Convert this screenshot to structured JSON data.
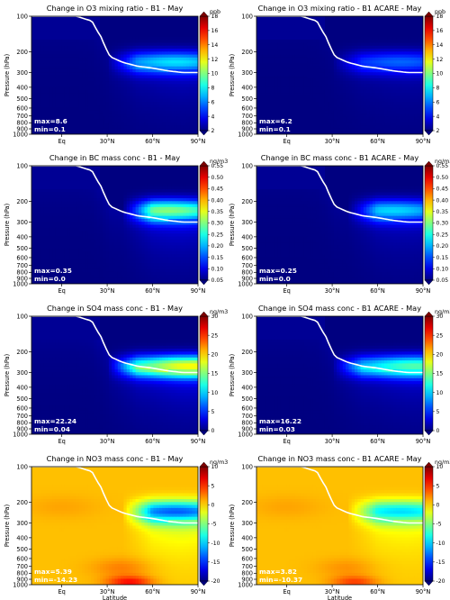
{
  "figure": {
    "x_tick_labels": [
      "Eq",
      "30°N",
      "60°N",
      "90°N"
    ],
    "y_tick_labels": [
      "100",
      "200",
      "300",
      "400",
      "500",
      "600",
      "700",
      "800",
      "900",
      "1000"
    ],
    "ylabel": "Pressure (hPa)",
    "xlabel": "Latitude"
  },
  "chart_data": [
    {
      "type": "heatmap",
      "title": "Change in O3 mixing ratio - B1 - May",
      "colorbar_unit": "ppb",
      "colorbar_ticks": [
        "2",
        "4",
        "6",
        "8",
        "10",
        "12",
        "14",
        "16",
        "18"
      ],
      "vmin": 2,
      "vmax": 18,
      "diverging": false,
      "max_label": "max=8.6",
      "min_label": "min=0.1",
      "x_range_deg": [
        -20,
        90
      ],
      "y_range_hpa": [
        100,
        1000
      ],
      "tropopause": [
        [
          -20,
          100
        ],
        [
          10,
          100
        ],
        [
          20,
          110
        ],
        [
          26,
          150
        ],
        [
          32,
          220
        ],
        [
          40,
          245
        ],
        [
          50,
          265
        ],
        [
          60,
          275
        ],
        [
          70,
          290
        ],
        [
          80,
          300
        ],
        [
          90,
          300
        ]
      ],
      "hotspot_lat_range": [
        30,
        90
      ],
      "hotspot_center_hpa": 245,
      "hotspot_peak": 8.6,
      "hotspot_lat_peak": 75
    },
    {
      "type": "heatmap",
      "title": "Change in O3 mixing ratio - B1 ACARE - May",
      "colorbar_unit": "ppb",
      "colorbar_ticks": [
        "2",
        "4",
        "6",
        "8",
        "10",
        "12",
        "14",
        "16",
        "18"
      ],
      "vmin": 2,
      "vmax": 18,
      "diverging": false,
      "max_label": "max=6.2",
      "min_label": "min=0.1",
      "x_range_deg": [
        -20,
        90
      ],
      "y_range_hpa": [
        100,
        1000
      ],
      "tropopause": [
        [
          -20,
          100
        ],
        [
          10,
          100
        ],
        [
          20,
          110
        ],
        [
          26,
          150
        ],
        [
          32,
          220
        ],
        [
          40,
          245
        ],
        [
          50,
          265
        ],
        [
          60,
          275
        ],
        [
          70,
          290
        ],
        [
          80,
          300
        ],
        [
          90,
          300
        ]
      ],
      "hotspot_lat_range": [
        30,
        90
      ],
      "hotspot_center_hpa": 245,
      "hotspot_peak": 6.2,
      "hotspot_lat_peak": 75
    },
    {
      "type": "heatmap",
      "title": "Change in BC mass conc - B1 - May",
      "colorbar_unit": "ng/m3",
      "colorbar_ticks": [
        "0.05",
        "0.10",
        "0.15",
        "0.20",
        "0.25",
        "0.30",
        "0.35",
        "0.40",
        "0.45",
        "0.50",
        "0.55"
      ],
      "vmin": 0.05,
      "vmax": 0.55,
      "diverging": false,
      "max_label": "max=0.35",
      "min_label": "min=0.0",
      "x_range_deg": [
        -20,
        90
      ],
      "y_range_hpa": [
        100,
        1000
      ],
      "tropopause": [
        [
          -20,
          100
        ],
        [
          10,
          100
        ],
        [
          20,
          110
        ],
        [
          26,
          150
        ],
        [
          32,
          220
        ],
        [
          40,
          245
        ],
        [
          50,
          265
        ],
        [
          60,
          275
        ],
        [
          70,
          290
        ],
        [
          80,
          300
        ],
        [
          90,
          300
        ]
      ],
      "hotspot_lat_range": [
        40,
        90
      ],
      "hotspot_center_hpa": 240,
      "hotspot_peak": 0.35,
      "hotspot_lat_peak": 70
    },
    {
      "type": "heatmap",
      "title": "Change in BC mass conc - B1 ACARE - May",
      "colorbar_unit": "ng/m3",
      "colorbar_ticks": [
        "0.05",
        "0.10",
        "0.15",
        "0.20",
        "0.25",
        "0.30",
        "0.35",
        "0.40",
        "0.45",
        "0.50",
        "0.55"
      ],
      "vmin": 0.05,
      "vmax": 0.55,
      "diverging": false,
      "max_label": "max=0.25",
      "min_label": "min=0.0",
      "x_range_deg": [
        -20,
        90
      ],
      "y_range_hpa": [
        100,
        1000
      ],
      "tropopause": [
        [
          -20,
          100
        ],
        [
          10,
          100
        ],
        [
          20,
          110
        ],
        [
          26,
          150
        ],
        [
          32,
          220
        ],
        [
          40,
          245
        ],
        [
          50,
          265
        ],
        [
          60,
          275
        ],
        [
          70,
          290
        ],
        [
          80,
          300
        ],
        [
          90,
          300
        ]
      ],
      "hotspot_lat_range": [
        40,
        90
      ],
      "hotspot_center_hpa": 240,
      "hotspot_peak": 0.25,
      "hotspot_lat_peak": 70
    },
    {
      "type": "heatmap",
      "title": "Change in SO4 mass conc - B1 - May",
      "colorbar_unit": "ng/m3",
      "colorbar_ticks": [
        "0",
        "5",
        "10",
        "15",
        "20",
        "25",
        "30"
      ],
      "vmin": 0,
      "vmax": 30,
      "diverging": false,
      "max_label": "max=22.24",
      "min_label": "min=0.04",
      "x_range_deg": [
        -20,
        90
      ],
      "y_range_hpa": [
        100,
        1000
      ],
      "tropopause": [
        [
          -20,
          100
        ],
        [
          10,
          100
        ],
        [
          20,
          110
        ],
        [
          26,
          150
        ],
        [
          32,
          220
        ],
        [
          40,
          245
        ],
        [
          50,
          265
        ],
        [
          60,
          275
        ],
        [
          70,
          290
        ],
        [
          80,
          300
        ],
        [
          90,
          300
        ]
      ],
      "hotspot_lat_range": [
        30,
        90
      ],
      "hotspot_center_hpa": 265,
      "hotspot_peak": 22.24,
      "hotspot_lat_peak": 85
    },
    {
      "type": "heatmap",
      "title": "Change in SO4 mass conc - B1 ACARE - May",
      "colorbar_unit": "ng/m3",
      "colorbar_ticks": [
        "0",
        "5",
        "10",
        "15",
        "20",
        "25",
        "30"
      ],
      "vmin": 0,
      "vmax": 30,
      "diverging": false,
      "max_label": "max=16.22",
      "min_label": "min=0.03",
      "x_range_deg": [
        -20,
        90
      ],
      "y_range_hpa": [
        100,
        1000
      ],
      "tropopause": [
        [
          -20,
          100
        ],
        [
          10,
          100
        ],
        [
          20,
          110
        ],
        [
          26,
          150
        ],
        [
          32,
          220
        ],
        [
          40,
          245
        ],
        [
          50,
          265
        ],
        [
          60,
          275
        ],
        [
          70,
          290
        ],
        [
          80,
          300
        ],
        [
          90,
          300
        ]
      ],
      "hotspot_lat_range": [
        30,
        90
      ],
      "hotspot_center_hpa": 265,
      "hotspot_peak": 16.22,
      "hotspot_lat_peak": 85
    },
    {
      "type": "heatmap",
      "title": "Change in NO3 mass conc - B1 - May",
      "colorbar_unit": "ng/m3",
      "colorbar_ticks": [
        "-20",
        "-15",
        "-10",
        "-5",
        "0",
        "5",
        "10"
      ],
      "vmin": -20,
      "vmax": 10,
      "diverging": true,
      "max_label": "max=5.39",
      "min_label": "min=-14.23",
      "x_range_deg": [
        -20,
        90
      ],
      "y_range_hpa": [
        100,
        1000
      ],
      "tropopause": [
        [
          -20,
          100
        ],
        [
          10,
          100
        ],
        [
          20,
          110
        ],
        [
          26,
          150
        ],
        [
          32,
          220
        ],
        [
          40,
          245
        ],
        [
          50,
          265
        ],
        [
          60,
          275
        ],
        [
          70,
          290
        ],
        [
          80,
          300
        ],
        [
          90,
          300
        ]
      ],
      "hotspot_lat_range": [
        40,
        90
      ],
      "hotspot_center_hpa": 240,
      "hotspot_peak": -14.23,
      "hotspot_lat_peak": 75,
      "surface_peak": 5.39
    },
    {
      "type": "heatmap",
      "title": "Change in NO3 mass conc - B1 ACARE - May",
      "colorbar_unit": "ng/m3",
      "colorbar_ticks": [
        "-20",
        "-15",
        "-10",
        "-5",
        "0",
        "5",
        "10"
      ],
      "vmin": -20,
      "vmax": 10,
      "diverging": true,
      "max_label": "max=3.82",
      "min_label": "min=-10.37",
      "x_range_deg": [
        -20,
        90
      ],
      "y_range_hpa": [
        100,
        1000
      ],
      "tropopause": [
        [
          -20,
          100
        ],
        [
          10,
          100
        ],
        [
          20,
          110
        ],
        [
          26,
          150
        ],
        [
          32,
          220
        ],
        [
          40,
          245
        ],
        [
          50,
          265
        ],
        [
          60,
          275
        ],
        [
          70,
          290
        ],
        [
          80,
          300
        ],
        [
          90,
          300
        ]
      ],
      "hotspot_lat_range": [
        40,
        90
      ],
      "hotspot_center_hpa": 240,
      "hotspot_peak": -10.37,
      "hotspot_lat_peak": 75,
      "surface_peak": 3.82
    }
  ]
}
